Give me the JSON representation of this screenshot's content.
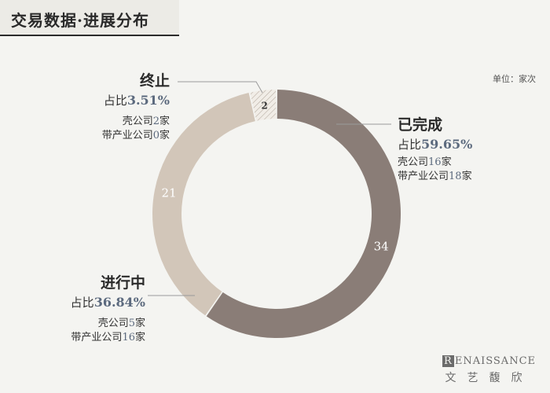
{
  "title": "交易数据·进展分布",
  "unit": "单位：家次",
  "chart_data": {
    "type": "pie",
    "donut": true,
    "slices": [
      {
        "name": "已完成",
        "value": 34,
        "percent": "59.65%",
        "color": "#8a7d77"
      },
      {
        "name": "进行中",
        "value": 21,
        "percent": "36.84%",
        "color": "#d2c6b9"
      },
      {
        "name": "终止",
        "value": 2,
        "percent": "3.51%",
        "color": "#eeeae4"
      }
    ]
  },
  "labels": {
    "done": {
      "name": "已完成",
      "pct_prefix": "占比",
      "pct": "59.65%",
      "l1_pre": "壳公司",
      "l1_num": "16",
      "l1_suf": "家",
      "l2_pre": "带产业公司",
      "l2_num": "18",
      "l2_suf": "家"
    },
    "progress": {
      "name": "进行中",
      "pct_prefix": "占比",
      "pct": "36.84%",
      "l1_pre": "壳公司",
      "l1_num": "5",
      "l1_suf": "家",
      "l2_pre": "带产业公司",
      "l2_num": "16",
      "l2_suf": "家"
    },
    "stopped": {
      "name": "终止",
      "pct_prefix": "占比",
      "pct": "3.51%",
      "l1_pre": "壳公司",
      "l1_num": "2",
      "l1_suf": "家",
      "l2_pre": "带产业公司",
      "l2_num": "0",
      "l2_suf": "家"
    }
  },
  "brand": {
    "first": "R",
    "rest": "ENAISSANCE",
    "cn": "文艺馥欣"
  }
}
